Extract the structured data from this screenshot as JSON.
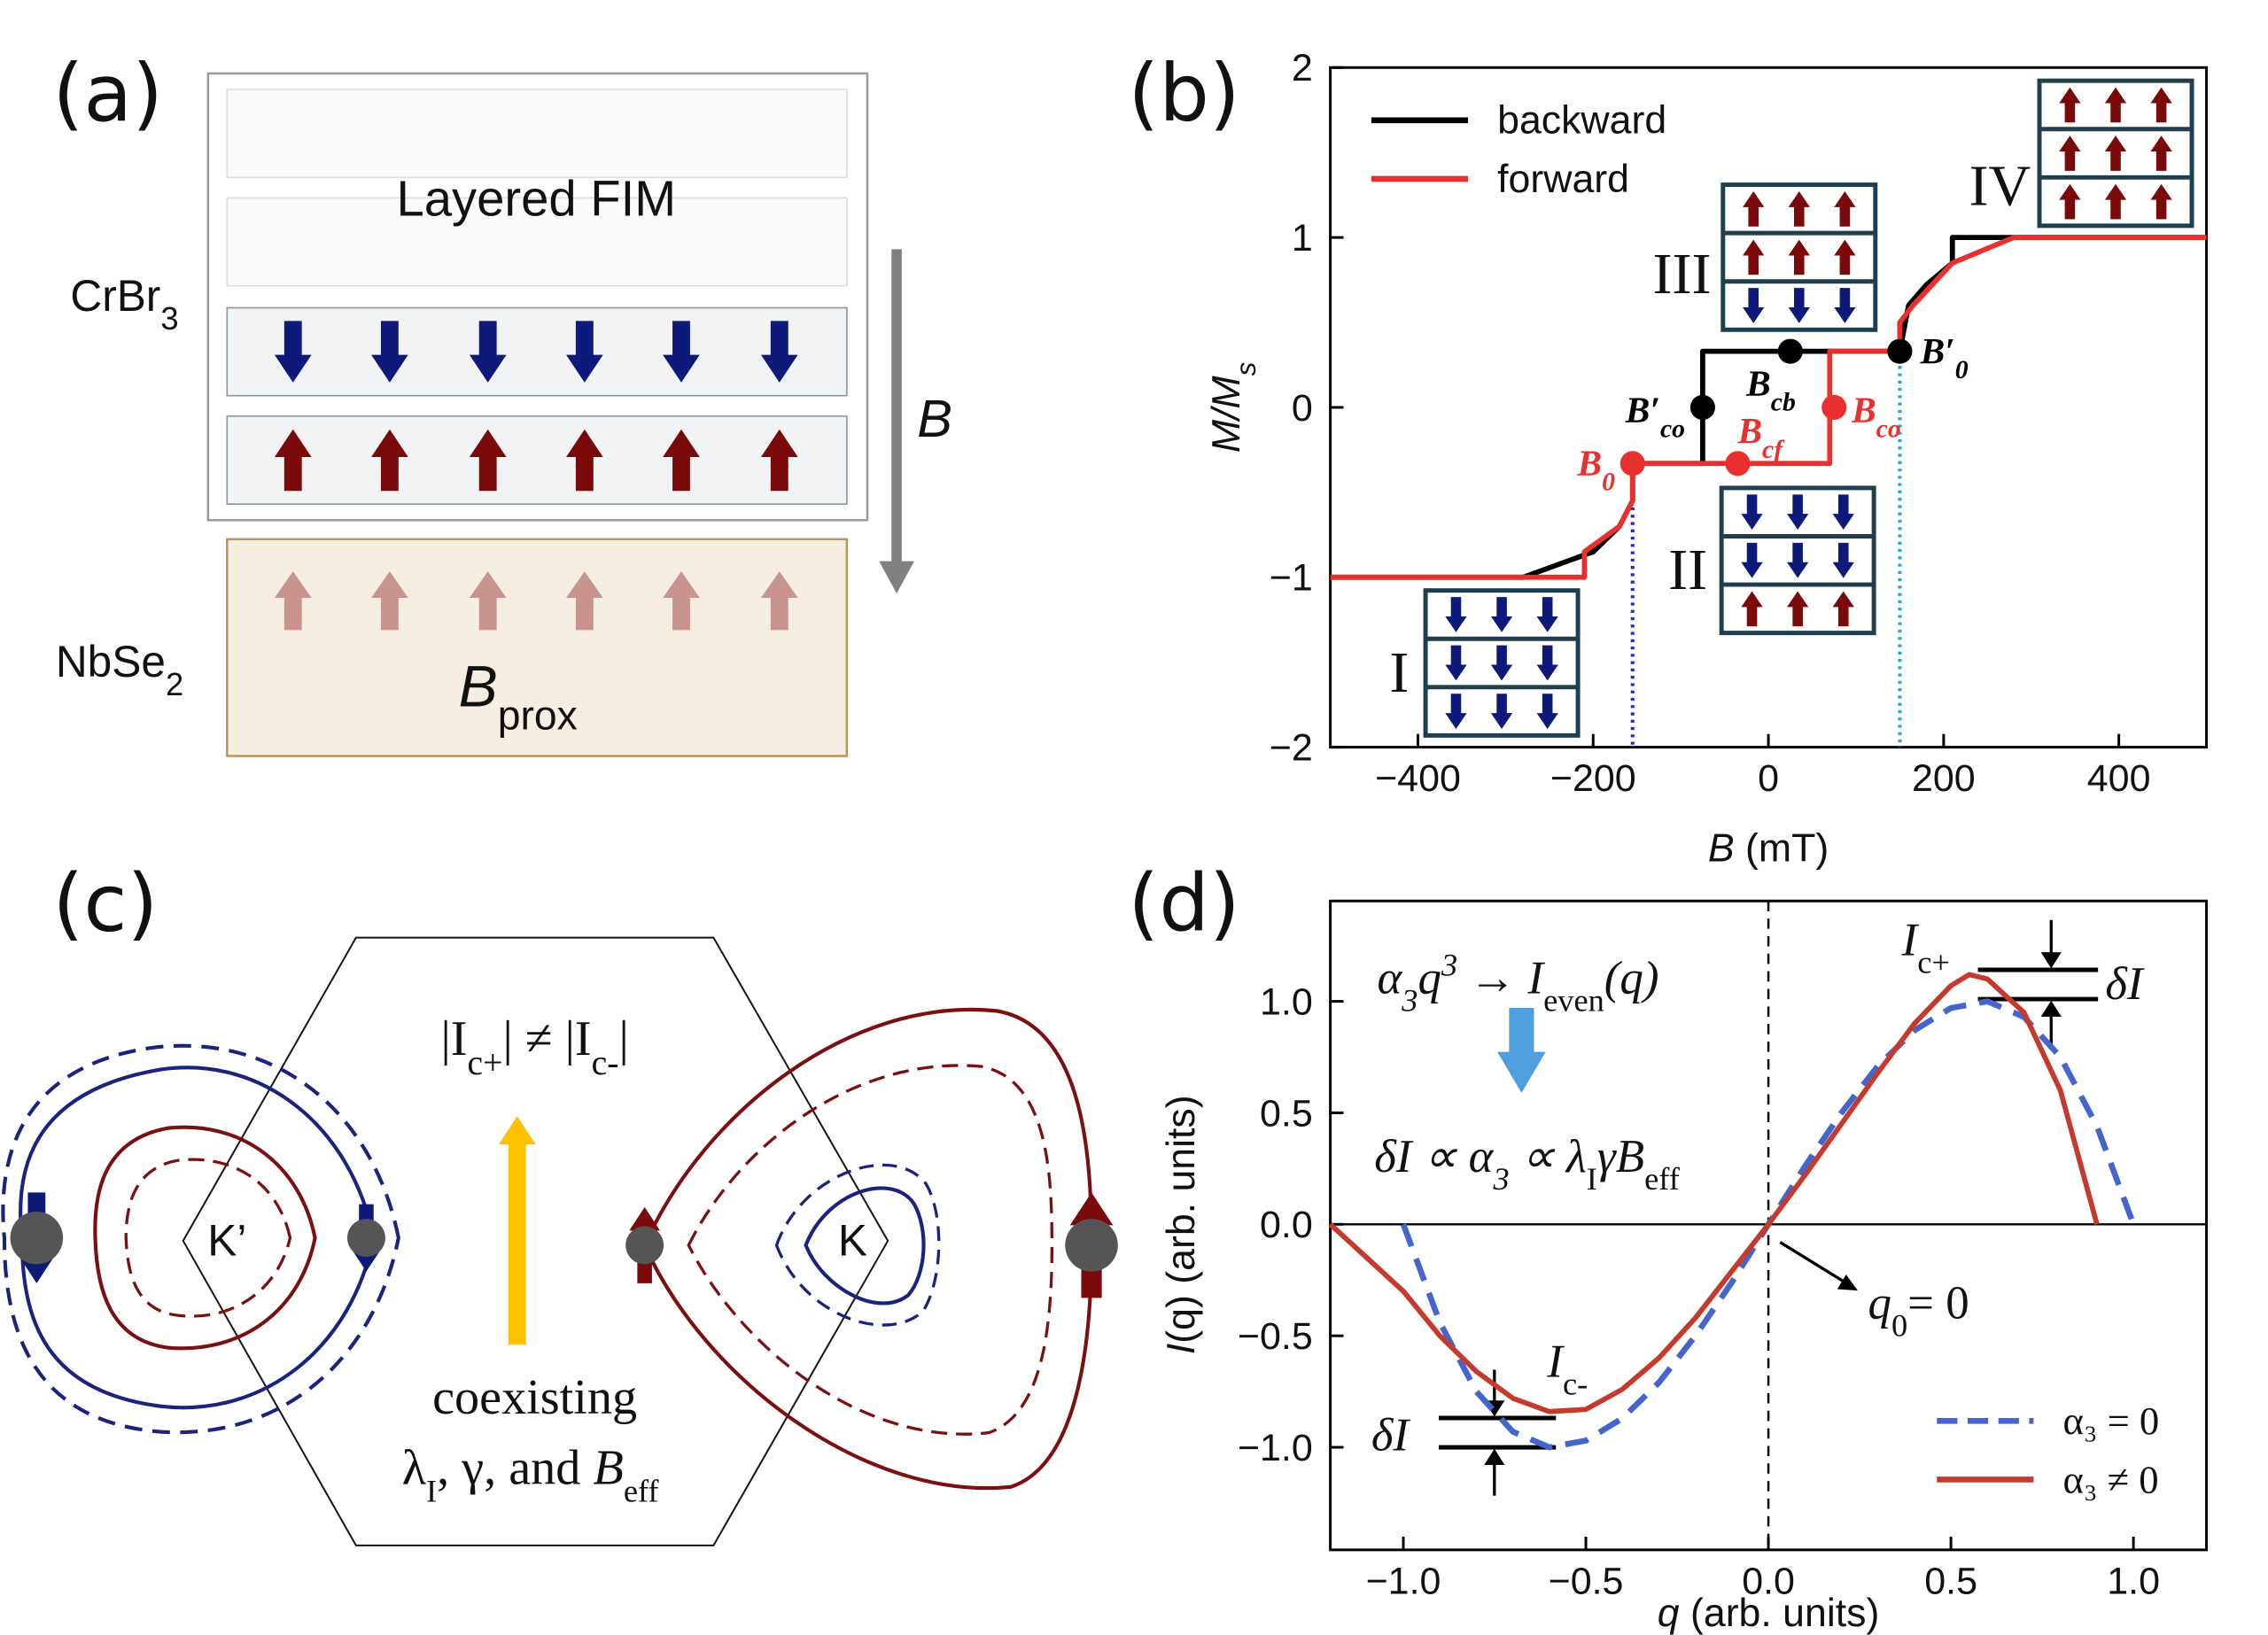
{
  "panel_a": {
    "label": "(a)",
    "top_layer": "Layered FIM",
    "crbr3": [
      "CrBr",
      "3"
    ],
    "field": "B",
    "nbse2": [
      "NbSe",
      "2"
    ],
    "bprox": [
      "B",
      "prox"
    ]
  },
  "panel_c": {
    "label": "(c)",
    "inequality": [
      "|I",
      "c+",
      "| ≠ |I",
      "c-",
      "|"
    ],
    "valley_left": "K’",
    "valley_right": "K",
    "caption_1": "coexisting",
    "caption_2": [
      "λ",
      "I",
      ", γ, and ",
      "B",
      "eff"
    ]
  },
  "chart_data": [
    {
      "type": "line",
      "label": "(b)",
      "x_label": [
        "B",
        " (mT)"
      ],
      "y_label": [
        "M/M",
        "s"
      ],
      "xlim": [
        -500,
        500
      ],
      "ylim": [
        -2,
        2
      ],
      "xticks": [
        {
          "value": -400,
          "label": "−400"
        },
        {
          "value": -200,
          "label": "−200"
        },
        0,
        200,
        400
      ],
      "yticks": [
        {
          "value": -2,
          "label": "−2"
        },
        {
          "value": -1,
          "label": "−1"
        },
        0,
        1,
        2
      ],
      "legend": "upper left",
      "series": [
        {
          "name": "backward",
          "color": "#000000",
          "x": [
            500,
            210,
            210,
            180,
            160,
            150,
            -75,
            -75,
            -155,
            -155,
            -170,
            -200,
            -280,
            -500
          ],
          "values": [
            1,
            1,
            0.85,
            0.72,
            0.6,
            0.33,
            0.33,
            -0.33,
            -0.33,
            -0.55,
            -0.7,
            -0.85,
            -1,
            -1
          ]
        },
        {
          "name": "forward",
          "color": "#e8312f",
          "x": [
            -500,
            -210,
            -210,
            -170,
            -155,
            -155,
            70,
            70,
            150,
            150,
            165,
            210,
            280,
            500
          ],
          "values": [
            -1,
            -1,
            -0.85,
            -0.7,
            -0.55,
            -0.33,
            -0.33,
            0.33,
            0.33,
            0.5,
            0.6,
            0.85,
            1,
            1
          ]
        }
      ],
      "markers": [
        {
          "label": [
            "B",
            "0"
          ],
          "x": -155,
          "y": -0.33,
          "color": "#e8312f"
        },
        {
          "label": [
            "B",
            "cf"
          ],
          "x": -35,
          "y": -0.33,
          "color": "#e8312f"
        },
        {
          "label": [
            "B",
            "co"
          ],
          "x": 75,
          "y": 0,
          "color": "#e8312f"
        },
        {
          "label": [
            "B′",
            "co"
          ],
          "x": -75,
          "y": 0,
          "color": "#000000"
        },
        {
          "label": [
            "B",
            "cb"
          ],
          "x": 25,
          "y": 0.33,
          "color": "#000000"
        },
        {
          "label": [
            "B′",
            "0"
          ],
          "x": 150,
          "y": 0.33,
          "color": "#000000"
        }
      ],
      "guides": [
        {
          "x": -155,
          "from": -0.33,
          "color": "#2a2ad0"
        },
        {
          "x": 150,
          "from": 0.33,
          "color": "#29a8d8"
        }
      ],
      "phases": [
        "I",
        "II",
        "III",
        "IV"
      ]
    },
    {
      "type": "line",
      "label": "(d)",
      "x_label": [
        "q",
        " (arb. units)"
      ],
      "y_label": [
        "I",
        "(q) (arb. units)"
      ],
      "xlim": [
        -1.2,
        1.2
      ],
      "ylim": [
        -1.46,
        1.45
      ],
      "xticks": [
        {
          "value": -1,
          "label": "−1.0"
        },
        {
          "value": -0.5,
          "label": "−0.5"
        },
        {
          "value": 0,
          "label": "0.0"
        },
        {
          "value": 0.5,
          "label": "0.5"
        },
        {
          "value": 1,
          "label": "1.0"
        }
      ],
      "yticks": [
        {
          "value": -1,
          "label": "−1.0"
        },
        {
          "value": -0.5,
          "label": "−0.5"
        },
        {
          "value": 0,
          "label": "0.0"
        },
        {
          "value": 0.5,
          "label": "0.5"
        },
        {
          "value": 1,
          "label": "1.0"
        }
      ],
      "legend": "lower right",
      "zero_lines": true,
      "series": [
        {
          "name": "α₃ = 0",
          "color": "#4466cc",
          "dash": true,
          "x": [
            -1,
            -0.9,
            -0.8,
            -0.7,
            -0.6,
            -0.5,
            -0.4,
            -0.3,
            -0.2,
            -0.1,
            0,
            0.1,
            0.2,
            0.3,
            0.4,
            0.5,
            0.6,
            0.7,
            0.8,
            0.9,
            1
          ],
          "values": [
            0,
            -0.44,
            -0.75,
            -0.93,
            -1.0,
            -0.97,
            -0.87,
            -0.71,
            -0.5,
            -0.26,
            0,
            0.26,
            0.5,
            0.71,
            0.87,
            0.97,
            1.0,
            0.93,
            0.75,
            0.44,
            0
          ]
        },
        {
          "name": "α₃ ≠ 0",
          "color": "#c53a2e",
          "x": [
            -1.2,
            -1.1,
            -1.0,
            -0.9,
            -0.8,
            -0.7,
            -0.6,
            -0.5,
            -0.4,
            -0.3,
            -0.2,
            -0.1,
            0,
            0.1,
            0.2,
            0.3,
            0.4,
            0.5,
            0.55,
            0.6,
            0.7,
            0.8,
            0.9
          ],
          "values": [
            0,
            -0.15,
            -0.3,
            -0.5,
            -0.66,
            -0.78,
            -0.84,
            -0.83,
            -0.74,
            -0.6,
            -0.42,
            -0.21,
            0,
            0.22,
            0.45,
            0.68,
            0.9,
            1.07,
            1.12,
            1.1,
            0.95,
            0.6,
            0
          ]
        }
      ],
      "annotations": {
        "formula": [
          "α",
          "3",
          "q",
          "3",
          " → ",
          "I",
          "even",
          "(q)"
        ],
        "relation": [
          "δI ∝ α",
          "3",
          " ∝ λ",
          "I",
          "γB",
          "eff"
        ],
        "peak_pos": [
          "I",
          "c+"
        ],
        "peak_neg": [
          "I",
          "c-"
        ],
        "delta_pos": "δI",
        "delta_neg": "δI",
        "q0": [
          "q",
          "0",
          "= 0"
        ]
      }
    }
  ]
}
